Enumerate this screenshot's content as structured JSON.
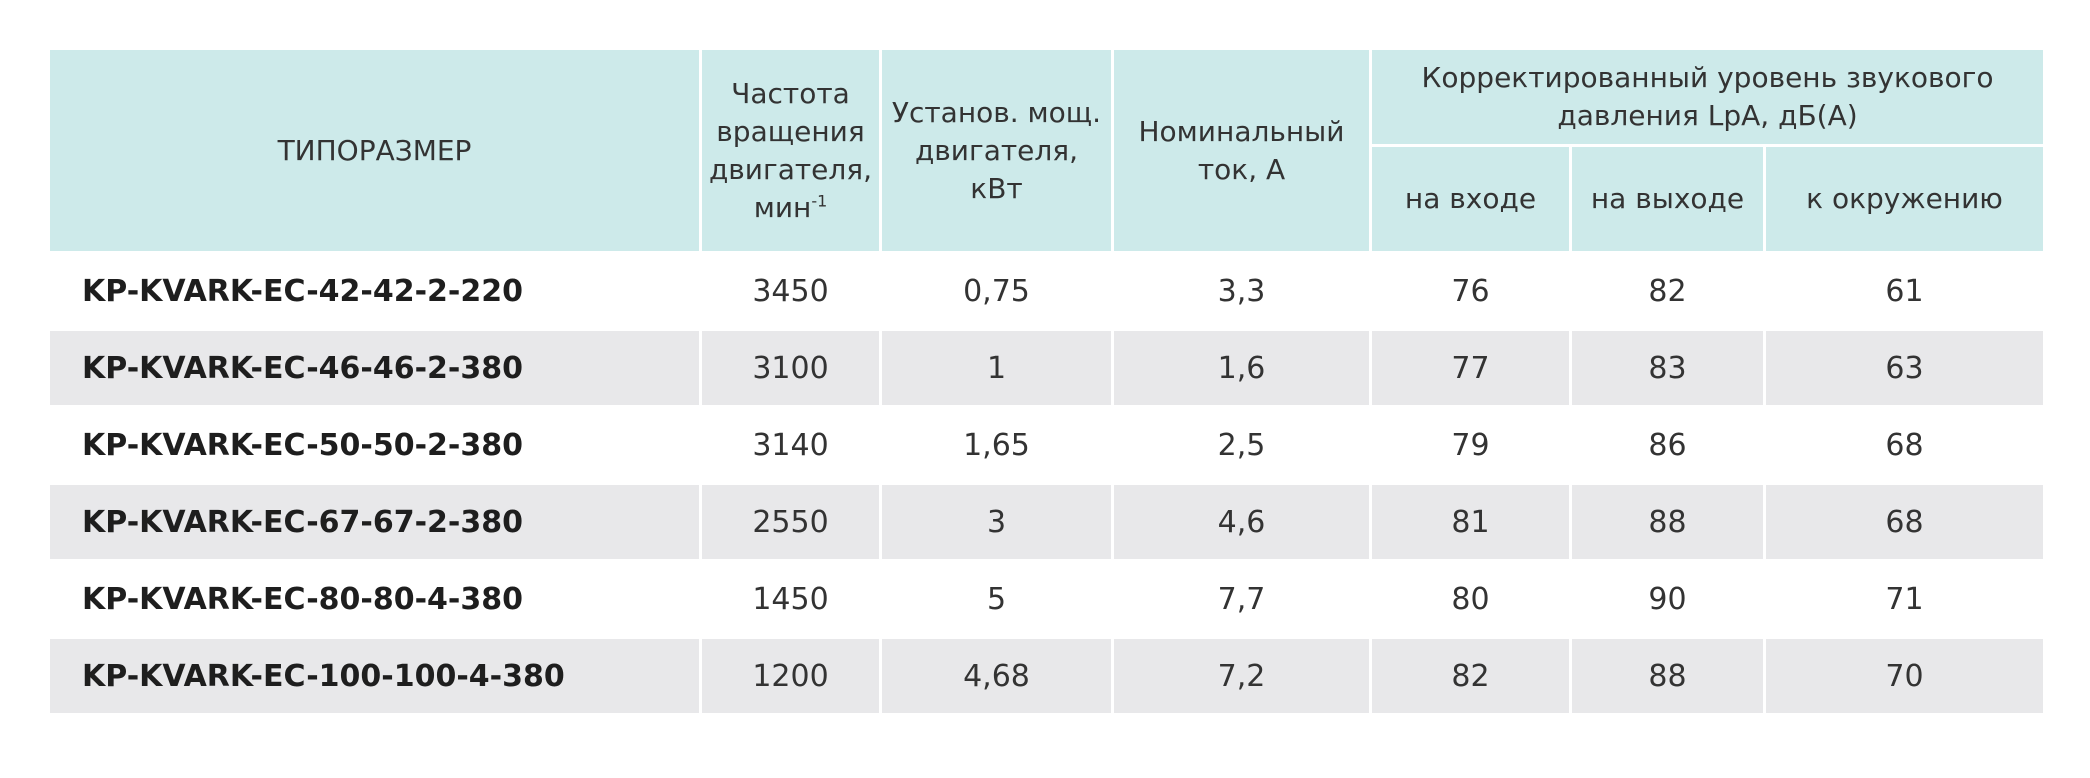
{
  "header": {
    "model": "ТИПОРАЗМЕР",
    "rpm": [
      "Частота",
      "вращения",
      "двигателя,",
      "мин"
    ],
    "rpm_sup": "-1",
    "power": [
      "Установ. мощ.",
      "двигателя,",
      "кВт"
    ],
    "current": [
      "Номинальный",
      "ток, А"
    ],
    "sound_group": [
      "Корректированный уровень звукового",
      "давления LpA, дБ(А)"
    ],
    "sound_in": "на входе",
    "sound_out": "на выходе",
    "sound_env": "к окружению"
  },
  "rows": [
    {
      "model": "KP-KVARK-EC-42-42-2-220",
      "rpm": "3450",
      "power": "0,75",
      "current": "3,3",
      "in": "76",
      "out": "82",
      "env": "61"
    },
    {
      "model": "KP-KVARK-EC-46-46-2-380",
      "rpm": "3100",
      "power": "1",
      "current": "1,6",
      "in": "77",
      "out": "83",
      "env": "63"
    },
    {
      "model": "KP-KVARK-EC-50-50-2-380",
      "rpm": "3140",
      "power": "1,65",
      "current": "2,5",
      "in": "79",
      "out": "86",
      "env": "68"
    },
    {
      "model": "KP-KVARK-EC-67-67-2-380",
      "rpm": "2550",
      "power": "3",
      "current": "4,6",
      "in": "81",
      "out": "88",
      "env": "68"
    },
    {
      "model": "KP-KVARK-EC-80-80-4-380",
      "rpm": "1450",
      "power": "5",
      "current": "7,7",
      "in": "80",
      "out": "90",
      "env": "71"
    },
    {
      "model": "KP-KVARK-EC-100-100-4-380",
      "rpm": "1200",
      "power": "4,68",
      "current": "7,2",
      "in": "82",
      "out": "88",
      "env": "70"
    }
  ],
  "colors": {
    "header_bg": "#cdeaea",
    "stripe_bg": "#e8e8ea"
  }
}
